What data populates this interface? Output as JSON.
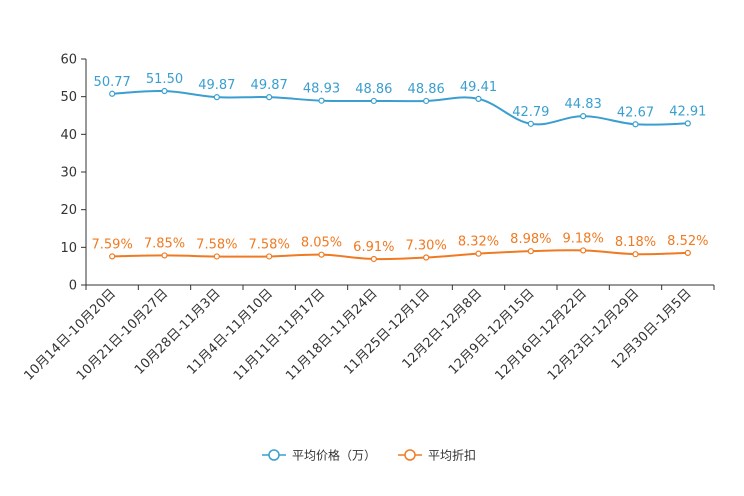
{
  "chart_data": {
    "type": "line",
    "title": "",
    "xlabel": "",
    "ylabel": "",
    "ylim": [
      0,
      60
    ],
    "yticks": [
      0,
      10,
      20,
      30,
      40,
      50,
      60
    ],
    "grid": false,
    "legend_position": "bottom",
    "categories": [
      "10月14日-10月20日",
      "10月21日-10月27日",
      "10月28日-11月3日",
      "11月4日-11月10日",
      "11月11日-11月17日",
      "11月18日-11月24日",
      "11月25日-12月1日",
      "12月2日-12月8日",
      "12月9日-12月15日",
      "12月16日-12月22日",
      "12月23日-12月29日",
      "12月30日-1月5日"
    ],
    "series": [
      {
        "name": "平均价格（万）",
        "color": "#3a9fd0",
        "values": [
          50.77,
          51.5,
          49.87,
          49.87,
          48.93,
          48.86,
          48.86,
          49.41,
          42.79,
          44.83,
          42.67,
          42.91
        ],
        "labels": [
          "50.77",
          "51.50",
          "49.87",
          "49.87",
          "48.93",
          "48.86",
          "48.86",
          "49.41",
          "42.79",
          "44.83",
          "42.67",
          "42.91"
        ]
      },
      {
        "name": "平均折扣",
        "color": "#f07a22",
        "values": [
          7.59,
          7.85,
          7.58,
          7.58,
          8.05,
          6.91,
          7.3,
          8.32,
          8.98,
          9.18,
          8.18,
          8.52
        ],
        "labels": [
          "7.59%",
          "7.85%",
          "7.58%",
          "7.58%",
          "8.05%",
          "6.91%",
          "7.30%",
          "8.32%",
          "8.98%",
          "9.18%",
          "8.18%",
          "8.52%"
        ]
      }
    ]
  }
}
